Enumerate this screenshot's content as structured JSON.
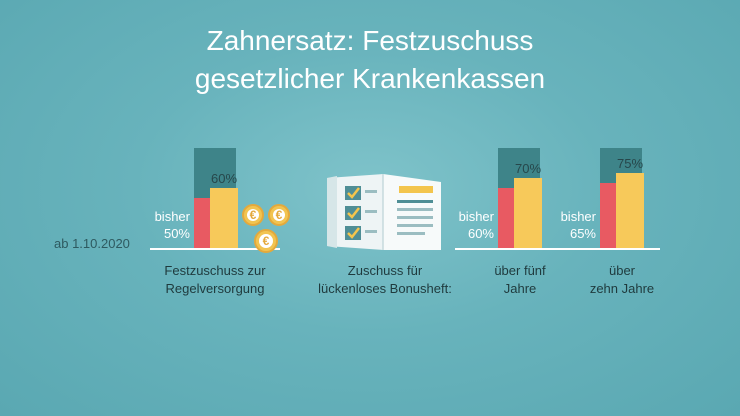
{
  "title": {
    "line1": "Zahnersatz: Festzuschuss",
    "line2": "gesetzlicher Krankenkassen"
  },
  "date_label": "ab 1.10.2020",
  "colors": {
    "background": "#68b3bc",
    "max_bar": "#3e8489",
    "old_bar": "#e85a62",
    "new_bar": "#f7c95a",
    "coin": "#f2c451"
  },
  "icons": {
    "coins": "euro-coins-icon",
    "booklet": "bonus-booklet-icon"
  },
  "chart_data": {
    "type": "bar",
    "scale_max": 100,
    "groups": [
      {
        "category": "Festzuschuss zur Regelversorgung",
        "caption_lines": [
          "Festzuschuss zur",
          "Regelversorgung"
        ],
        "old_label_lines": [
          "bisher",
          "50%"
        ],
        "old_value": 50,
        "new_value": 60,
        "new_label": "60%"
      },
      {
        "category": "über fünf Jahre",
        "caption_lines": [
          "über fünf",
          "Jahre"
        ],
        "old_label_lines": [
          "bisher",
          "60%"
        ],
        "old_value": 60,
        "new_value": 70,
        "new_label": "70%"
      },
      {
        "category": "über zehn Jahre",
        "caption_lines": [
          "über",
          "zehn Jahre"
        ],
        "old_label_lines": [
          "bisher",
          "65%"
        ],
        "old_value": 65,
        "new_value": 75,
        "new_label": "75%"
      }
    ],
    "middle_caption_lines": [
      "Zuschuss für",
      "lückenloses Bonusheft:"
    ]
  }
}
